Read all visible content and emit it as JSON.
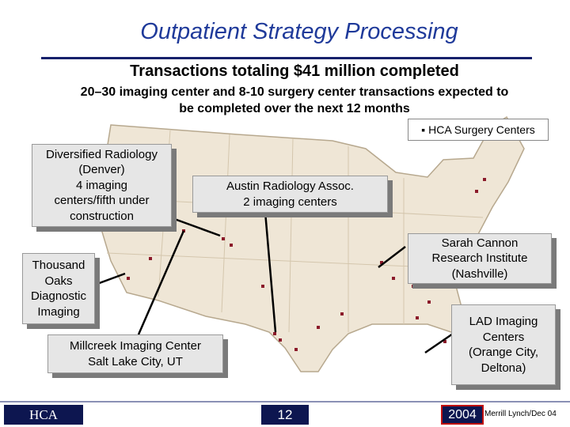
{
  "header": {
    "title": "Outpatient Strategy Processing",
    "subtitle": "Transactions totaling $41 million completed",
    "description": [
      "20–30 imaging center and 8-10 surgery center transactions expected to",
      "be completed over the next 12 months"
    ]
  },
  "legend": {
    "label": "HCA Surgery Centers"
  },
  "callouts": [
    {
      "lines": [
        "Diversified Radiology",
        "(Denver)",
        "4 imaging",
        "centers/fifth under",
        "construction"
      ]
    },
    {
      "lines": [
        "Austin Radiology Assoc.",
        "2 imaging centers"
      ]
    },
    {
      "lines": [
        "Sarah Cannon",
        "Research Institute",
        "(Nashville)"
      ]
    },
    {
      "lines": [
        "Thousand",
        "Oaks",
        "Diagnostic",
        "Imaging"
      ]
    },
    {
      "lines": [
        "LAD Imaging",
        "Centers",
        "(Orange City,",
        "Deltona)"
      ]
    },
    {
      "lines": [
        "Millcreek Imaging Center",
        "Salt Lake City, UT"
      ]
    }
  ],
  "footer": {
    "logo": "HCA",
    "page_number": "12",
    "year": "2004",
    "source": "Merrill Lynch/Dec 04"
  }
}
